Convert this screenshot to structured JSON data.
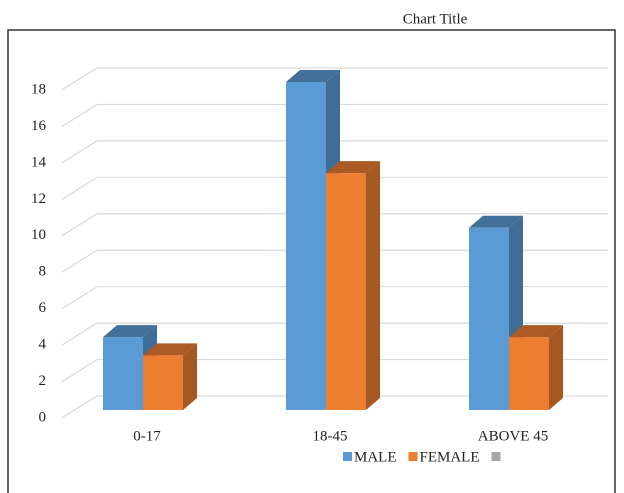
{
  "chart_data": {
    "type": "bar",
    "title": "Chart Title",
    "categories": [
      "0-17",
      "18-45",
      "ABOVE 45"
    ],
    "series": [
      {
        "name": "MALE",
        "color": "#5b9bd5",
        "values": [
          4,
          18,
          10
        ]
      },
      {
        "name": "FEMALE",
        "color": "#ed7d31",
        "values": [
          3,
          13,
          4
        ]
      }
    ],
    "ylim": [
      0,
      18
    ],
    "yticks": [
      0,
      2,
      4,
      6,
      8,
      10,
      12,
      14,
      16,
      18
    ],
    "grid": true
  }
}
